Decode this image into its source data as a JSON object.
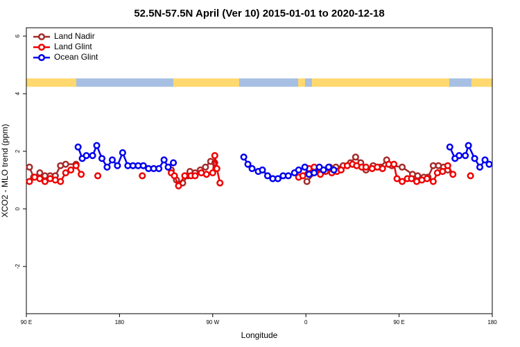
{
  "chart_data": {
    "type": "line",
    "title": "52.5N-57.5N April (Ver 10)   2015-01-01 to 2020-12-18",
    "xlabel": "Longitude",
    "ylabel": "XCO2 - MLO trend (ppm)",
    "xlim": [
      90,
      540
    ],
    "xticks": [
      {
        "value": 90,
        "label": "90 E"
      },
      180,
      {
        "value": 270,
        "label": "90 W"
      },
      {
        "value": 360,
        "label": "0"
      },
      {
        "value": 450,
        "label": "90 E"
      },
      {
        "value": 540,
        "label": "180"
      }
    ],
    "ylim": [
      -3.64,
      6.29
    ],
    "yticks": [
      -2,
      0,
      2,
      4,
      6
    ],
    "legend": "top-left",
    "series": [
      {
        "name": "Land Nadir",
        "color": "#a52a2a",
        "x": [
          93,
          97,
          103,
          108,
          113,
          118,
          123,
          128,
          138,
          null,
          230,
          235,
          241,
          246,
          248,
          253,
          258,
          263,
          268,
          272,
          null,
          361,
          373,
          383,
          389,
          396,
          403,
          408,
          413,
          418,
          425,
          432,
          438,
          443,
          453,
          463,
          468,
          474,
          478,
          483,
          488,
          493,
          497
        ],
        "values": [
          1.45,
          1.1,
          1.25,
          1.15,
          1.15,
          1.15,
          1.5,
          1.55,
          1.55,
          null,
          1.35,
          1.0,
          0.9,
          1.15,
          1.3,
          1.25,
          1.35,
          1.45,
          1.65,
          1.6,
          null,
          0.95,
          1.4,
          1.45,
          1.45,
          1.5,
          1.6,
          1.8,
          1.6,
          1.35,
          1.5,
          1.45,
          1.7,
          1.5,
          1.45,
          1.2,
          1.15,
          1.1,
          1.1,
          1.5,
          1.5,
          1.45,
          1.35
        ]
      },
      {
        "name": "Land Glint",
        "color": "#ee0000",
        "x": [
          93,
          98,
          103,
          108,
          113,
          118,
          123,
          128,
          133,
          138,
          143,
          null,
          159,
          null,
          202,
          null,
          230,
          233,
          237,
          243,
          249,
          253,
          259,
          264,
          270,
          272,
          274,
          277,
          null,
          353,
          357,
          363,
          368,
          374,
          379,
          385,
          390,
          394,
          400,
          405,
          409,
          414,
          418,
          424,
          429,
          434,
          440,
          445,
          448,
          453,
          458,
          462,
          467,
          472,
          477,
          483,
          487,
          492,
          497,
          502,
          null,
          519
        ],
        "values": [
          0.95,
          1.1,
          1.05,
          0.95,
          1.05,
          1.0,
          0.95,
          1.25,
          1.35,
          1.5,
          1.2,
          null,
          1.15,
          null,
          1.15,
          null,
          1.25,
          1.15,
          0.8,
          1.15,
          1.15,
          1.15,
          1.25,
          1.2,
          1.25,
          1.85,
          1.4,
          0.9,
          null,
          1.1,
          1.15,
          1.4,
          1.45,
          1.2,
          1.3,
          1.25,
          1.3,
          1.35,
          1.5,
          1.55,
          1.5,
          1.45,
          1.45,
          1.4,
          1.45,
          1.4,
          1.55,
          1.55,
          1.05,
          0.95,
          1.05,
          1.05,
          0.95,
          1.0,
          1.05,
          0.95,
          1.25,
          1.3,
          1.5,
          1.2,
          null,
          1.15
        ]
      },
      {
        "name": "Ocean Glint",
        "color": "#0000ee",
        "x": [
          140,
          144,
          148,
          154,
          158,
          163,
          168,
          173,
          178,
          183,
          188,
          193,
          198,
          203,
          208,
          213,
          218,
          223,
          227,
          232,
          null,
          300,
          304,
          308,
          314,
          318,
          323,
          328,
          333,
          338,
          343,
          349,
          353,
          359,
          363,
          368,
          373,
          377,
          382,
          387,
          null,
          499,
          504,
          508,
          514,
          517,
          523,
          528,
          533,
          537
        ],
        "values": [
          2.15,
          1.75,
          1.85,
          1.85,
          2.2,
          1.75,
          1.45,
          1.7,
          1.5,
          1.95,
          1.5,
          1.5,
          1.5,
          1.5,
          1.4,
          1.4,
          1.4,
          1.7,
          1.45,
          1.6,
          null,
          1.8,
          1.55,
          1.4,
          1.3,
          1.35,
          1.15,
          1.05,
          1.05,
          1.15,
          1.15,
          1.25,
          1.35,
          1.45,
          1.2,
          1.25,
          1.45,
          1.35,
          1.45,
          1.35,
          null,
          2.15,
          1.75,
          1.85,
          1.85,
          2.2,
          1.75,
          1.45,
          1.7,
          1.55
        ]
      }
    ]
  }
}
